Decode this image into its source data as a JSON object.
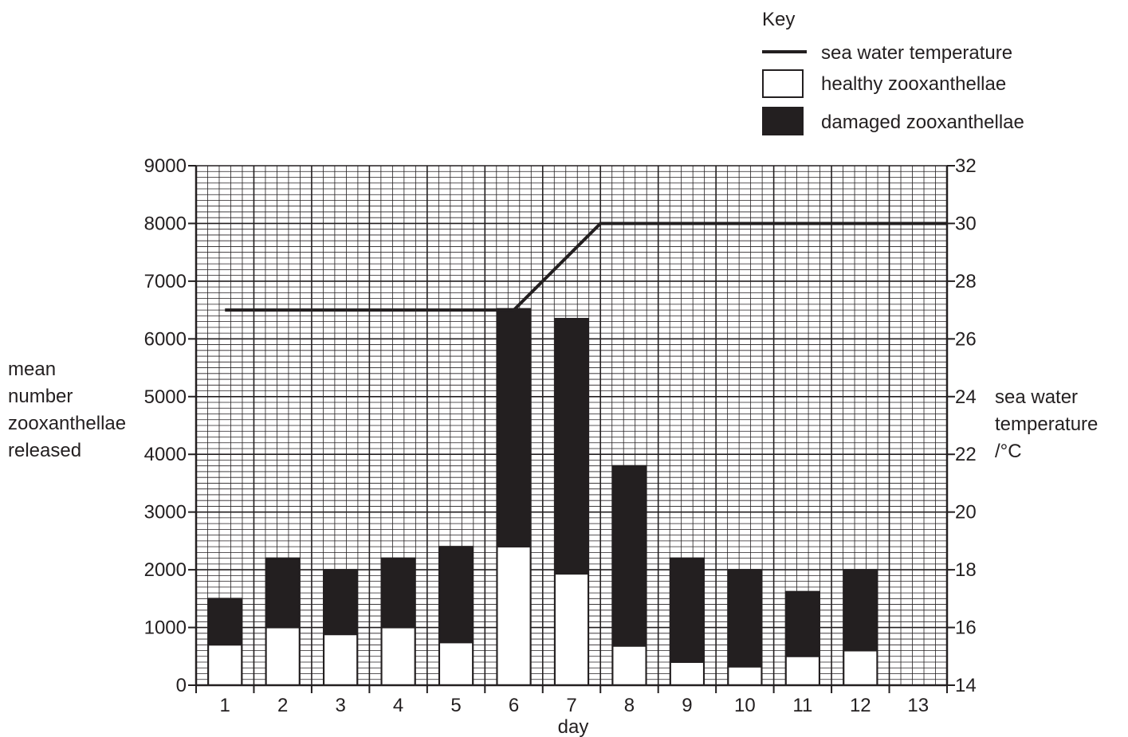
{
  "key": {
    "title": "Key",
    "items": [
      {
        "label": "sea water temperature",
        "symbol": "line"
      },
      {
        "label": "healthy zooxanthellae",
        "symbol": "open-box"
      },
      {
        "label": "damaged zooxanthellae",
        "symbol": "filled-box"
      }
    ]
  },
  "axes": {
    "ylabel_lines": [
      "mean",
      "number",
      "zooxanthellae",
      "released"
    ],
    "y2label_lines": [
      "sea water",
      "temperature",
      "/°C"
    ],
    "xlabel": "day"
  },
  "colors": {
    "ink": "#231f20",
    "grid": "#231f20",
    "healthy": "#ffffff",
    "damaged": "#231f20"
  },
  "chart_data": {
    "type": "bar",
    "stacked": true,
    "grid": true,
    "legend_position": "top-right",
    "xlabel": "day",
    "ylabel": "mean number zooxanthellae released",
    "y2label": "sea water temperature /°C",
    "categories": [
      "1",
      "2",
      "3",
      "4",
      "5",
      "6",
      "7",
      "8",
      "9",
      "10",
      "11",
      "12",
      "13"
    ],
    "ylim": [
      0,
      9000
    ],
    "yticks": [
      "0",
      "1000",
      "2000",
      "3000",
      "4000",
      "5000",
      "6000",
      "7000",
      "8000",
      "9000"
    ],
    "y2lim": [
      14,
      32
    ],
    "y2ticks": [
      "14",
      "16",
      "18",
      "20",
      "22",
      "24",
      "26",
      "28",
      "30",
      "32"
    ],
    "series": [
      {
        "name": "healthy zooxanthellae",
        "kind": "bar",
        "values": [
          700,
          1000,
          880,
          1000,
          740,
          2400,
          1930,
          680,
          400,
          320,
          500,
          600,
          null
        ]
      },
      {
        "name": "damaged zooxanthellae",
        "kind": "bar",
        "values": [
          800,
          1200,
          1120,
          1200,
          1660,
          4120,
          4420,
          3120,
          1800,
          1680,
          1120,
          1400,
          null
        ]
      },
      {
        "name": "sea water temperature",
        "kind": "line",
        "axis": "right",
        "x": [
          0.5,
          5.5,
          7.0,
          13.5
        ],
        "values": [
          27,
          27,
          30,
          30
        ]
      }
    ]
  }
}
